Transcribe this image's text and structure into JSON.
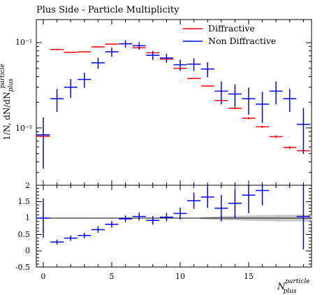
{
  "chart_data": {
    "type": "scatter",
    "title": "Plus Side - Particle Multiplicity",
    "xlabel": "N",
    "xlabel_sup": "particle",
    "xlabel_sub": "plus",
    "ylabel": "1/N, dN/dN",
    "ylabel_sup": "particle",
    "ylabel_sub": "plus",
    "main_ylim": [
      0.0032,
      0.2
    ],
    "main_yscale": "log",
    "main_yticks": [
      "10⁻²",
      "10⁻¹"
    ],
    "xlim": [
      -0.6,
      19.5
    ],
    "xticks": [
      "0",
      "5",
      "10",
      "15"
    ],
    "ratio_ylim": [
      -0.5,
      2.1
    ],
    "ratio_yticks": [
      "-0.5",
      "0",
      "0.5",
      "1",
      "1.5",
      "2"
    ],
    "legend_position": "top-right",
    "series": [
      {
        "name": "Diffractive",
        "color": "#ff0000",
        "x": [
          0,
          1,
          2,
          3,
          4,
          5,
          6,
          7,
          8,
          9,
          10,
          11,
          12,
          13,
          14,
          15,
          16,
          17,
          18,
          19
        ],
        "values": [
          0.008,
          0.083,
          0.077,
          0.078,
          0.089,
          0.096,
          0.097,
          0.087,
          0.076,
          0.064,
          0.05,
          0.038,
          0.031,
          0.021,
          0.017,
          0.013,
          0.0103,
          0.0079,
          0.0059,
          0.0054
        ],
        "yerr_frac": [
          0.015,
          0.012,
          0.012,
          0.012,
          0.012,
          0.012,
          0.012,
          0.012,
          0.012,
          0.012,
          0.012,
          0.015,
          0.015,
          0.025,
          0.025,
          0.03,
          0.03,
          0.035,
          0.04,
          0.05
        ]
      },
      {
        "name": "Non Diffractive",
        "color": "#0000ff",
        "x": [
          0,
          1,
          2,
          3,
          4,
          5,
          6,
          7,
          8,
          9,
          10,
          11,
          12,
          13,
          14,
          15,
          16,
          17,
          18,
          19
        ],
        "values": [
          0.0083,
          0.022,
          0.03,
          0.037,
          0.058,
          0.078,
          0.097,
          0.092,
          0.071,
          0.066,
          0.055,
          0.056,
          0.049,
          0.027,
          0.025,
          0.022,
          0.019,
          0.027,
          0.022,
          0.011
        ],
        "yerr_frac": [
          0.6,
          0.3,
          0.25,
          0.2,
          0.15,
          0.12,
          0.1,
          0.1,
          0.12,
          0.12,
          0.15,
          0.17,
          0.2,
          0.3,
          0.3,
          0.35,
          0.4,
          0.3,
          0.3,
          0.55
        ]
      }
    ],
    "ratio": {
      "reference_line": 1,
      "band_start_x": 11.5,
      "band_halfwidth": [
        0.02,
        0.04,
        0.06,
        0.07,
        0.08,
        0.09,
        0.09,
        0.09
      ],
      "values": [
        1.0,
        0.27,
        0.39,
        0.47,
        0.65,
        0.81,
        0.98,
        1.05,
        0.93,
        1.03,
        1.14,
        1.53,
        1.64,
        1.3,
        1.45,
        1.7,
        1.84,
        null,
        null,
        1.05
      ],
      "yerr": [
        0.6,
        0.07,
        0.08,
        0.08,
        0.1,
        0.1,
        0.1,
        0.12,
        0.13,
        0.13,
        0.18,
        0.25,
        0.33,
        0.4,
        0.45,
        0.55,
        0.45,
        null,
        null,
        1.0
      ]
    }
  }
}
